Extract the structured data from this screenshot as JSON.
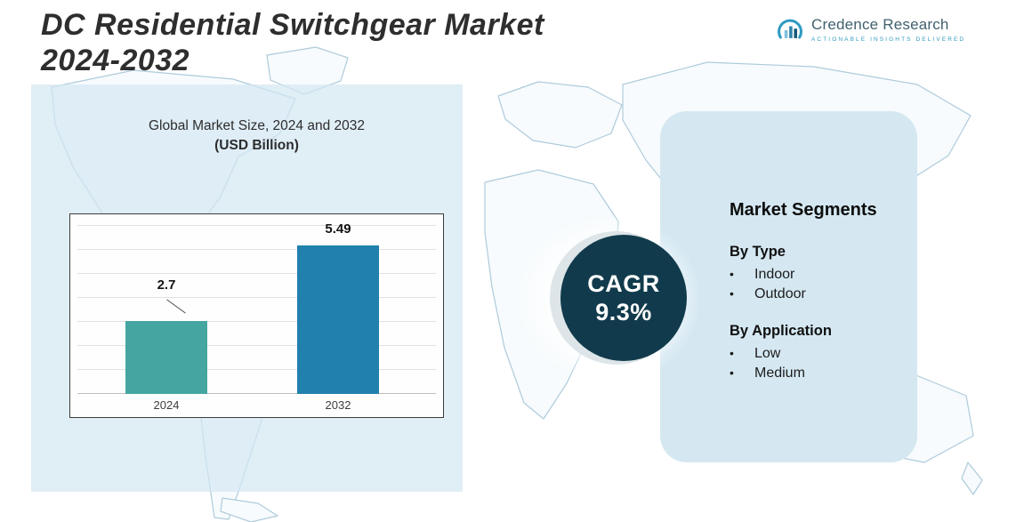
{
  "header": {
    "title_line1": "DC Residential Switchgear Market",
    "title_line2": "2024-2032",
    "logo": {
      "name": "Credence Research",
      "tagline": "Actionable Insights Delivered",
      "icon": "bar-chart-growth-icon"
    }
  },
  "chart": {
    "subtitle_line1": "Global Market Size, 2024 and 2032",
    "subtitle_line2": "(USD Billion)"
  },
  "chart_data": {
    "type": "bar",
    "title": "Global Market Size, 2024 and 2032 (USD Billion)",
    "categories": [
      "2024",
      "2032"
    ],
    "values": [
      2.7,
      5.49
    ],
    "xlabel": "",
    "ylabel": "USD Billion",
    "ylim": [
      0,
      6
    ],
    "grid": "horizontal",
    "legend": "none",
    "bar_colors": [
      "#45a6a1",
      "#2180ae"
    ]
  },
  "cagr": {
    "label": "CAGR",
    "value": "9.3%"
  },
  "segments": {
    "heading": "Market Segments",
    "groups": [
      {
        "label": "By Type",
        "items": [
          "Indoor",
          "Outdoor"
        ]
      },
      {
        "label": "By Application",
        "items": [
          "Low",
          "Medium"
        ]
      }
    ]
  },
  "colors": {
    "bar_2024": "#45a6a1",
    "bar_2032": "#2180ae",
    "cagr_circle_bg": "#113b4c",
    "panel_bg": "#d5e8f2",
    "logo_accent": "#2e9bc1",
    "map_outline": "#aecbdb"
  }
}
